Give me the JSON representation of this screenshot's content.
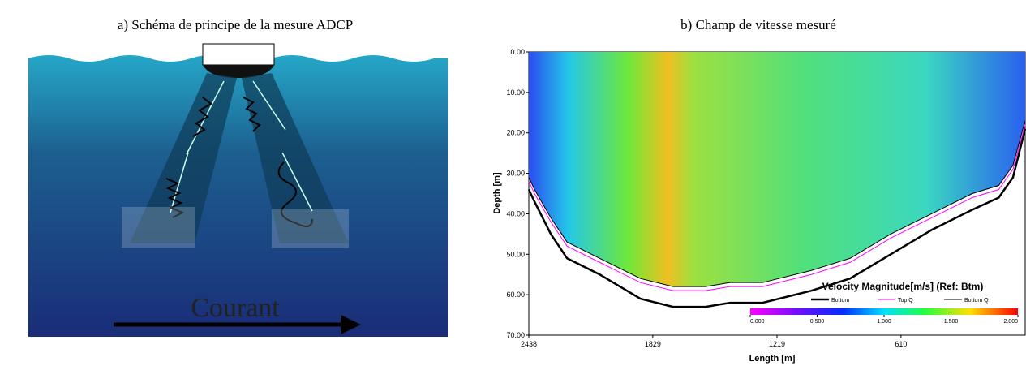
{
  "left_panel": {
    "caption": "a) Schéma de principe de la mesure ADCP",
    "label": "Courant"
  },
  "chart_data": {
    "type": "line",
    "title": "b) Champ de vitesse mesuré",
    "xlabel": "Length [m]",
    "ylabel": "Depth [m]",
    "xlim": [
      2438,
      0
    ],
    "xticks": [
      2438,
      1829,
      1219,
      610
    ],
    "ylim": [
      70,
      0
    ],
    "yticks": [
      {
        "value": 0,
        "label": "0.00"
      },
      {
        "value": 10,
        "label": "10.00"
      },
      {
        "value": 20,
        "label": "20.00"
      },
      {
        "value": 30,
        "label": "30.00"
      },
      {
        "value": 40,
        "label": "40.00"
      },
      {
        "value": 50,
        "label": "50.00"
      },
      {
        "value": 60,
        "label": "60.00"
      },
      {
        "value": 70,
        "label": "70.00"
      }
    ],
    "x": [
      2438,
      2410,
      2330,
      2250,
      2090,
      1890,
      1730,
      1570,
      1450,
      1290,
      1050,
      860,
      660,
      460,
      260,
      130,
      60,
      0
    ],
    "series": [
      {
        "name": "Bottom",
        "color": "#000000",
        "values": [
          34,
          37,
          45,
          51,
          55,
          61,
          63,
          63,
          62,
          62,
          59,
          56,
          50,
          44,
          39,
          36,
          31,
          19
        ]
      },
      {
        "name": "Top Q",
        "color": "#ff00ff",
        "values": [
          32,
          35,
          42,
          48,
          52,
          57,
          59,
          59,
          58,
          58,
          55,
          52,
          46,
          41,
          36,
          34,
          29,
          18
        ]
      },
      {
        "name": "Bottom Q",
        "color": "#000000",
        "values": [
          31,
          34,
          41,
          47,
          51,
          56,
          58,
          58,
          57,
          57,
          54,
          51,
          45,
          40,
          35,
          33,
          28,
          17
        ]
      }
    ],
    "colorbar": {
      "title": "Velocity Magnitude[m/s] (Ref: Btm)",
      "lim": [
        0,
        2
      ],
      "ticks": [
        {
          "value": 0,
          "label": "0.000"
        },
        {
          "value": 0.5,
          "label": "0.500"
        },
        {
          "value": 1,
          "label": "1.000"
        },
        {
          "value": 1.5,
          "label": "1.500"
        },
        {
          "value": 2,
          "label": "2.000"
        }
      ]
    }
  }
}
